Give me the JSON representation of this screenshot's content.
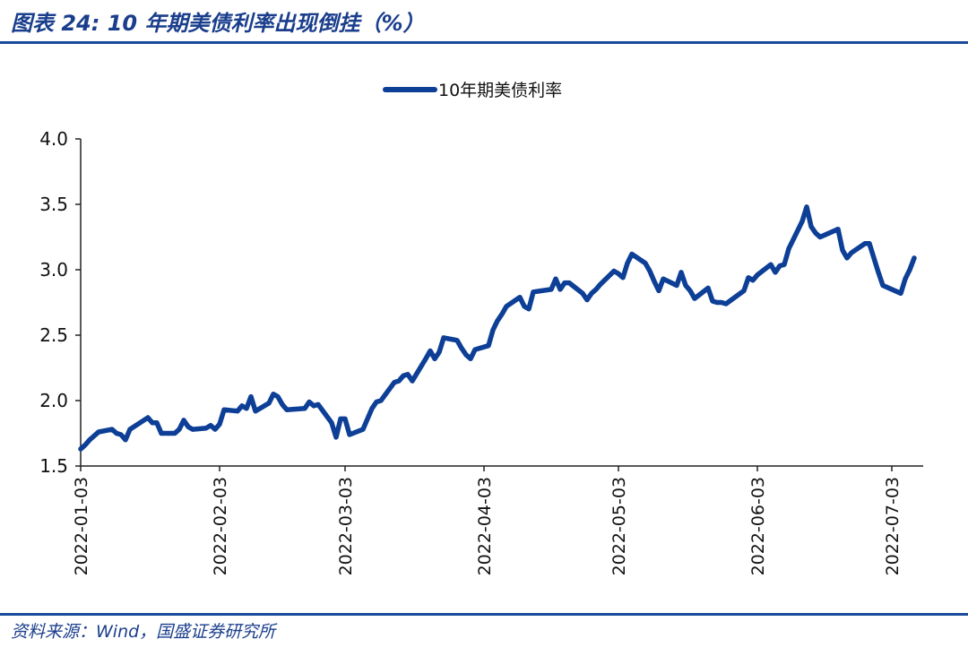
{
  "header": {
    "title": "图表 24:  10 年期美债利率出现倒挂（%）"
  },
  "footer": {
    "source": "资料来源：Wind，国盛证券研究所"
  },
  "chart_data": {
    "type": "line",
    "title": "",
    "xlabel": "",
    "ylabel": "",
    "ylim": [
      1.5,
      4.0
    ],
    "yticks": [
      "1.5",
      "2.0",
      "2.5",
      "3.0",
      "3.5",
      "4.0"
    ],
    "xticks": [
      "2022-01-03",
      "2022-02-03",
      "2022-03-03",
      "2022-04-03",
      "2022-05-03",
      "2022-06-03",
      "2022-07-03"
    ],
    "legend_position": "top-center",
    "series_color": "#0d3f96",
    "series": [
      {
        "name": "10年期美债利率",
        "points": [
          [
            "2022-01-03",
            1.63
          ],
          [
            "2022-01-04",
            1.66
          ],
          [
            "2022-01-05",
            1.7
          ],
          [
            "2022-01-06",
            1.73
          ],
          [
            "2022-01-07",
            1.76
          ],
          [
            "2022-01-10",
            1.78
          ],
          [
            "2022-01-11",
            1.75
          ],
          [
            "2022-01-12",
            1.74
          ],
          [
            "2022-01-13",
            1.7
          ],
          [
            "2022-01-14",
            1.78
          ],
          [
            "2022-01-18",
            1.87
          ],
          [
            "2022-01-19",
            1.83
          ],
          [
            "2022-01-20",
            1.83
          ],
          [
            "2022-01-21",
            1.75
          ],
          [
            "2022-01-24",
            1.75
          ],
          [
            "2022-01-25",
            1.78
          ],
          [
            "2022-01-26",
            1.85
          ],
          [
            "2022-01-27",
            1.8
          ],
          [
            "2022-01-28",
            1.78
          ],
          [
            "2022-01-31",
            1.79
          ],
          [
            "2022-02-01",
            1.81
          ],
          [
            "2022-02-02",
            1.78
          ],
          [
            "2022-02-03",
            1.82
          ],
          [
            "2022-02-04",
            1.93
          ],
          [
            "2022-02-07",
            1.92
          ],
          [
            "2022-02-08",
            1.96
          ],
          [
            "2022-02-09",
            1.94
          ],
          [
            "2022-02-10",
            2.03
          ],
          [
            "2022-02-11",
            1.92
          ],
          [
            "2022-02-14",
            1.98
          ],
          [
            "2022-02-15",
            2.05
          ],
          [
            "2022-02-16",
            2.03
          ],
          [
            "2022-02-17",
            1.97
          ],
          [
            "2022-02-18",
            1.93
          ],
          [
            "2022-02-22",
            1.94
          ],
          [
            "2022-02-23",
            1.99
          ],
          [
            "2022-02-24",
            1.96
          ],
          [
            "2022-02-25",
            1.97
          ],
          [
            "2022-02-28",
            1.83
          ],
          [
            "2022-03-01",
            1.72
          ],
          [
            "2022-03-02",
            1.86
          ],
          [
            "2022-03-03",
            1.86
          ],
          [
            "2022-03-04",
            1.74
          ],
          [
            "2022-03-07",
            1.78
          ],
          [
            "2022-03-08",
            1.86
          ],
          [
            "2022-03-09",
            1.94
          ],
          [
            "2022-03-10",
            1.99
          ],
          [
            "2022-03-11",
            2.0
          ],
          [
            "2022-03-14",
            2.14
          ],
          [
            "2022-03-15",
            2.15
          ],
          [
            "2022-03-16",
            2.19
          ],
          [
            "2022-03-17",
            2.2
          ],
          [
            "2022-03-18",
            2.15
          ],
          [
            "2022-03-21",
            2.32
          ],
          [
            "2022-03-22",
            2.38
          ],
          [
            "2022-03-23",
            2.32
          ],
          [
            "2022-03-24",
            2.37
          ],
          [
            "2022-03-25",
            2.48
          ],
          [
            "2022-03-28",
            2.46
          ],
          [
            "2022-03-29",
            2.4
          ],
          [
            "2022-03-30",
            2.35
          ],
          [
            "2022-03-31",
            2.32
          ],
          [
            "2022-04-01",
            2.39
          ],
          [
            "2022-04-04",
            2.42
          ],
          [
            "2022-04-05",
            2.54
          ],
          [
            "2022-04-06",
            2.61
          ],
          [
            "2022-04-07",
            2.66
          ],
          [
            "2022-04-08",
            2.72
          ],
          [
            "2022-04-11",
            2.79
          ],
          [
            "2022-04-12",
            2.72
          ],
          [
            "2022-04-13",
            2.7
          ],
          [
            "2022-04-14",
            2.83
          ],
          [
            "2022-04-18",
            2.85
          ],
          [
            "2022-04-19",
            2.93
          ],
          [
            "2022-04-20",
            2.85
          ],
          [
            "2022-04-21",
            2.9
          ],
          [
            "2022-04-22",
            2.9
          ],
          [
            "2022-04-25",
            2.82
          ],
          [
            "2022-04-26",
            2.77
          ],
          [
            "2022-04-27",
            2.82
          ],
          [
            "2022-04-28",
            2.85
          ],
          [
            "2022-04-29",
            2.89
          ],
          [
            "2022-05-02",
            2.99
          ],
          [
            "2022-05-03",
            2.97
          ],
          [
            "2022-05-04",
            2.94
          ],
          [
            "2022-05-05",
            3.05
          ],
          [
            "2022-05-06",
            3.12
          ],
          [
            "2022-05-09",
            3.05
          ],
          [
            "2022-05-10",
            2.99
          ],
          [
            "2022-05-11",
            2.91
          ],
          [
            "2022-05-12",
            2.84
          ],
          [
            "2022-05-13",
            2.93
          ],
          [
            "2022-05-16",
            2.88
          ],
          [
            "2022-05-17",
            2.98
          ],
          [
            "2022-05-18",
            2.88
          ],
          [
            "2022-05-19",
            2.84
          ],
          [
            "2022-05-20",
            2.78
          ],
          [
            "2022-05-23",
            2.86
          ],
          [
            "2022-05-24",
            2.76
          ],
          [
            "2022-05-25",
            2.75
          ],
          [
            "2022-05-26",
            2.75
          ],
          [
            "2022-05-27",
            2.74
          ],
          [
            "2022-05-31",
            2.84
          ],
          [
            "2022-06-01",
            2.94
          ],
          [
            "2022-06-02",
            2.92
          ],
          [
            "2022-06-03",
            2.96
          ],
          [
            "2022-06-06",
            3.04
          ],
          [
            "2022-06-07",
            2.98
          ],
          [
            "2022-06-08",
            3.03
          ],
          [
            "2022-06-09",
            3.04
          ],
          [
            "2022-06-10",
            3.16
          ],
          [
            "2022-06-13",
            3.37
          ],
          [
            "2022-06-14",
            3.48
          ],
          [
            "2022-06-15",
            3.33
          ],
          [
            "2022-06-16",
            3.28
          ],
          [
            "2022-06-17",
            3.25
          ],
          [
            "2022-06-21",
            3.31
          ],
          [
            "2022-06-22",
            3.15
          ],
          [
            "2022-06-23",
            3.09
          ],
          [
            "2022-06-24",
            3.13
          ],
          [
            "2022-06-27",
            3.2
          ],
          [
            "2022-06-28",
            3.2
          ],
          [
            "2022-06-29",
            3.09
          ],
          [
            "2022-06-30",
            2.98
          ],
          [
            "2022-07-01",
            2.88
          ],
          [
            "2022-07-05",
            2.82
          ],
          [
            "2022-07-06",
            2.93
          ],
          [
            "2022-07-07",
            3.0
          ],
          [
            "2022-07-08",
            3.09
          ]
        ]
      }
    ]
  }
}
